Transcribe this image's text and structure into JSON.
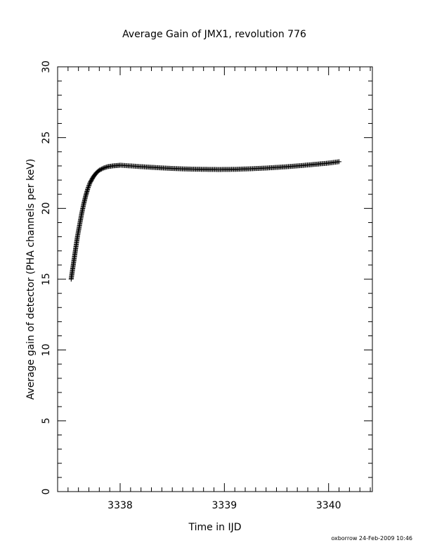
{
  "chart_data": {
    "type": "scatter",
    "title": "Average Gain of JMX1, revolution 776",
    "xlabel": "Time in IJD",
    "ylabel": "Average gain of detector (PHA channels per keV)",
    "xlim": [
      3337.4,
      3340.42
    ],
    "ylim": [
      0,
      30
    ],
    "x_ticks": [
      3338,
      3339,
      3340
    ],
    "y_ticks": [
      0,
      5,
      10,
      15,
      20,
      25,
      30
    ],
    "grid": false,
    "marker": "plus",
    "color": "#000000",
    "series": [
      {
        "x": [
          3337.53,
          3337.55,
          3337.57,
          3337.59,
          3337.61,
          3337.63,
          3337.65,
          3337.67,
          3337.69,
          3337.71,
          3337.74,
          3337.77,
          3337.8,
          3337.84,
          3337.88,
          3337.93,
          3338.0,
          3338.1,
          3338.2,
          3338.35,
          3338.5,
          3338.65,
          3338.8,
          3338.95,
          3339.1,
          3339.25,
          3339.4,
          3339.55,
          3339.7,
          3339.85,
          3340.0,
          3340.1
        ],
        "y": [
          15.0,
          16.0,
          17.0,
          18.0,
          18.8,
          19.6,
          20.3,
          20.9,
          21.4,
          21.8,
          22.2,
          22.5,
          22.7,
          22.85,
          22.95,
          23.0,
          23.05,
          23.0,
          22.95,
          22.88,
          22.82,
          22.78,
          22.76,
          22.75,
          22.76,
          22.8,
          22.85,
          22.92,
          23.0,
          23.1,
          23.2,
          23.3
        ]
      }
    ]
  },
  "footer": {
    "stamp": "oxborrow 24-Feb-2009 10:46"
  }
}
